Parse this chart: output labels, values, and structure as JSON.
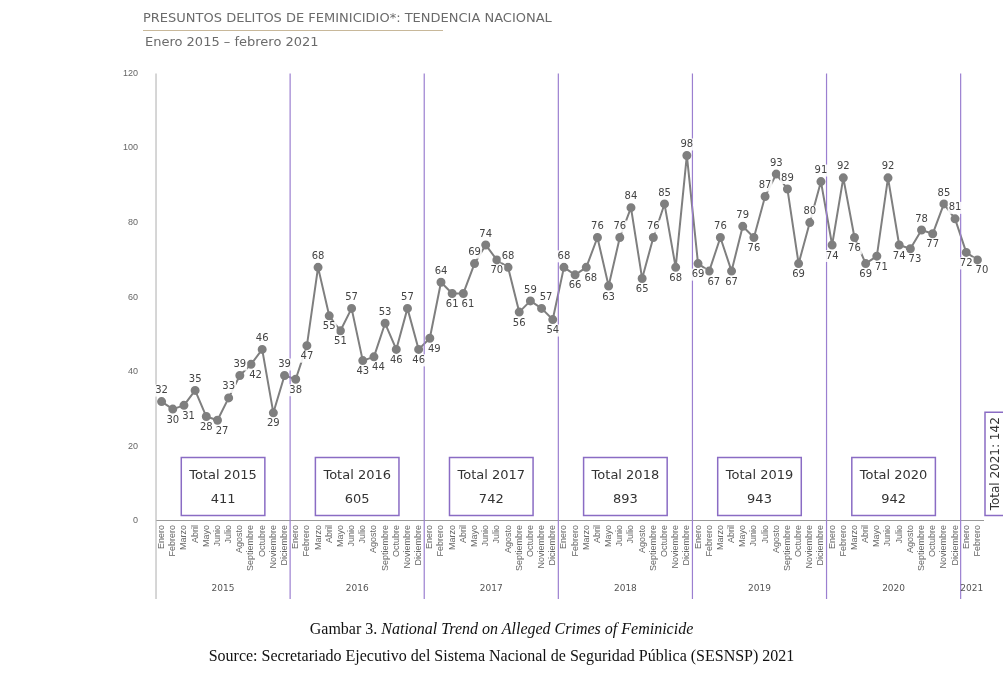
{
  "chart_data": {
    "type": "line",
    "title": "PRESUNTOS DELITOS DE FEMINICIDIO*: TENDENCIA NACIONAL",
    "subtitle": "Enero 2015 – febrero 2021",
    "categories": [
      "Enero",
      "Febrero",
      "Marzo",
      "Abril",
      "Mayo",
      "Junio",
      "Julio",
      "Agosto",
      "Septiembre",
      "Octubre",
      "Noviembre",
      "Diciembre",
      "Enero",
      "Febrero",
      "Marzo",
      "Abril",
      "Mayo",
      "Junio",
      "Julio",
      "Agosto",
      "Septiembre",
      "Octubre",
      "Noviembre",
      "Diciembre",
      "Enero",
      "Febrero",
      "Marzo",
      "Abril",
      "Mayo",
      "Junio",
      "Julio",
      "Agosto",
      "Septiembre",
      "Octubre",
      "Noviembre",
      "Diciembre",
      "Enero",
      "Febrero",
      "Marzo",
      "Abril",
      "Mayo",
      "Junio",
      "Julio",
      "Agosto",
      "Septiembre",
      "Octubre",
      "Noviembre",
      "Diciembre",
      "Enero",
      "Febrero",
      "Marzo",
      "Abril",
      "Mayo",
      "Junio",
      "Julio",
      "Agosto",
      "Septiembre",
      "Octubre",
      "Noviembre",
      "Diciembre",
      "Enero",
      "Febrero",
      "Marzo",
      "Abril",
      "Mayo",
      "Junio",
      "Julio",
      "Agosto",
      "Septiembre",
      "Octubre",
      "Noviembre",
      "Diciembre",
      "Enero",
      "Febrero"
    ],
    "series": [
      {
        "color": "#7f7f7f",
        "values": [
          32,
          30,
          31,
          35,
          28,
          27,
          33,
          39,
          42,
          46,
          29,
          39,
          38,
          47,
          68,
          55,
          51,
          57,
          43,
          44,
          53,
          46,
          57,
          46,
          49,
          64,
          61,
          61,
          69,
          74,
          70,
          68,
          56,
          59,
          57,
          54,
          68,
          66,
          68,
          76,
          63,
          76,
          84,
          65,
          76,
          85,
          68,
          98,
          69,
          67,
          76,
          67,
          79,
          76,
          87,
          93,
          89,
          69,
          80,
          91,
          74,
          92,
          76,
          69,
          71,
          92,
          74,
          73,
          78,
          77,
          85,
          81,
          72,
          70
        ]
      }
    ],
    "ylim": [
      0,
      120
    ],
    "yticks": [
      0,
      20,
      40,
      60,
      80,
      100,
      120
    ],
    "grid": false,
    "legend": false,
    "marker": "circle",
    "line_style": "solid",
    "data_labels": true,
    "annotations": [
      "Total 2015 411",
      "Total 2016 605",
      "Total 2017 742",
      "Total 2018 893",
      "Total 2019 943",
      "Total 2020 942",
      "Total 2021: 142",
      "2015",
      "2016",
      "2017",
      "2018",
      "2019",
      "2020",
      "2021",
      "Gambar 3. National Trend on Alleged Crimes of Feminicide",
      "Source: Secretariado Ejecutivo del Sistema Nacional de Seguridad Pública (SESNSP) 2021"
    ]
  }
}
